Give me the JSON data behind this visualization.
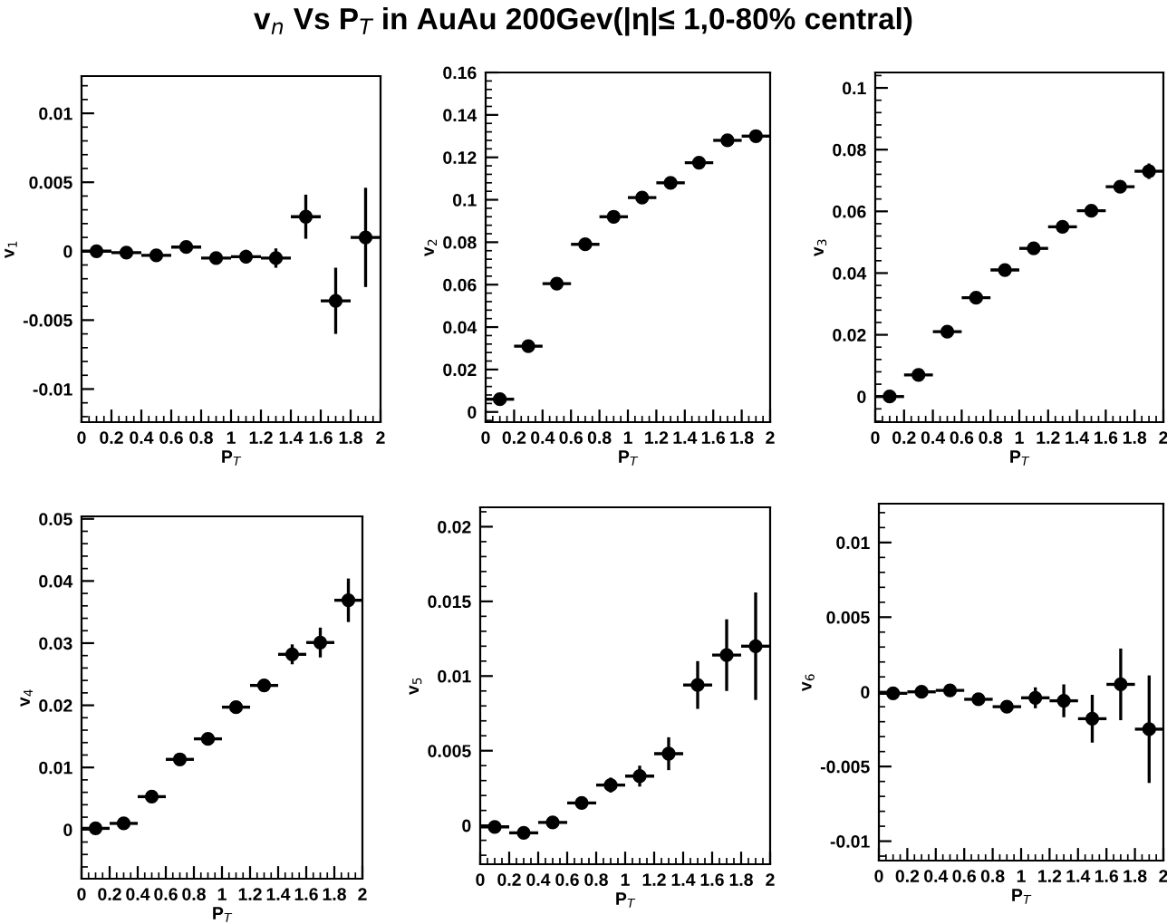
{
  "chart_data": [
    {
      "type": "scatter",
      "title": "v$_{n}$ Vs P$_{T}$ in AuAu 200Gev(|η|≤ 1,0-80% central)",
      "xlabel": "P$_{T}$",
      "ylabel": "v$_{1}$",
      "marker": "circle",
      "xlim": [
        0,
        2
      ],
      "xticks": [
        0,
        0.2,
        0.4,
        0.6,
        0.8,
        1,
        1.2,
        1.4,
        1.6,
        1.8,
        2
      ],
      "ylim": [
        -0.0124,
        0.0127
      ],
      "yticks": [
        -0.01,
        -0.005,
        0,
        0.005,
        0.01
      ],
      "x": [
        0.1,
        0.3,
        0.5,
        0.7,
        0.9,
        1.1,
        1.3,
        1.5,
        1.7,
        1.9
      ],
      "series": [
        {
          "color": "#000000",
          "values": [
            0,
            -0.0001,
            -0.0003,
            0.0003,
            -0.0005,
            -0.0004,
            -0.0005,
            0.0025,
            -0.0036,
            0.001
          ],
          "errors": [
            0.0002,
            0.0002,
            0.0002,
            0.0002,
            0.0003,
            0.0005,
            0.0007,
            0.0016,
            0.0024,
            0.0036
          ],
          "xerrors": [
            0.1,
            0.1,
            0.1,
            0.1,
            0.1,
            0.1,
            0.1,
            0.1,
            0.1,
            0.1
          ]
        }
      ]
    },
    {
      "type": "scatter",
      "xlabel": "P$_{T}$",
      "ylabel": "v$_{2}$",
      "marker": "circle",
      "xlim": [
        0,
        2
      ],
      "xticks": [
        0,
        0.2,
        0.4,
        0.6,
        0.8,
        1,
        1.2,
        1.4,
        1.6,
        1.8,
        2
      ],
      "ylim": [
        -0.0048,
        0.16
      ],
      "yticks": [
        0,
        0.02,
        0.04,
        0.06,
        0.08,
        0.1,
        0.12,
        0.14,
        0.16
      ],
      "x": [
        0.1,
        0.3,
        0.5,
        0.7,
        0.9,
        1.1,
        1.3,
        1.5,
        1.7,
        1.9
      ],
      "series": [
        {
          "color": "#000000",
          "values": [
            0.006,
            0.031,
            0.0605,
            0.079,
            0.092,
            0.101,
            0.108,
            0.1175,
            0.128,
            0.13
          ],
          "errors": [
            0.0005,
            0.0005,
            0.0005,
            0.0005,
            0.0005,
            0.0006,
            0.0007,
            0.001,
            0.0014,
            0.002
          ],
          "xerrors": [
            0.1,
            0.1,
            0.1,
            0.1,
            0.1,
            0.1,
            0.1,
            0.1,
            0.1,
            0.1
          ]
        }
      ]
    },
    {
      "type": "scatter",
      "xlabel": "P$_{T}$",
      "ylabel": "v$_{3}$",
      "marker": "circle",
      "xlim": [
        0,
        2
      ],
      "xticks": [
        0,
        0.2,
        0.4,
        0.6,
        0.8,
        1,
        1.2,
        1.4,
        1.6,
        1.8,
        2
      ],
      "ylim": [
        -0.0083,
        0.105
      ],
      "yticks": [
        0,
        0.02,
        0.04,
        0.06,
        0.08,
        0.1
      ],
      "x": [
        0.1,
        0.3,
        0.5,
        0.7,
        0.9,
        1.1,
        1.3,
        1.5,
        1.7,
        1.9
      ],
      "series": [
        {
          "color": "#000000",
          "values": [
            0,
            0.007,
            0.021,
            0.032,
            0.041,
            0.048,
            0.055,
            0.0602,
            0.068,
            0.073
          ],
          "errors": [
            0.0004,
            0.0004,
            0.0004,
            0.0004,
            0.0005,
            0.0006,
            0.0007,
            0.001,
            0.0015,
            0.0025
          ],
          "xerrors": [
            0.1,
            0.1,
            0.1,
            0.1,
            0.1,
            0.1,
            0.1,
            0.1,
            0.1,
            0.1
          ]
        }
      ]
    },
    {
      "type": "scatter",
      "xlabel": "P$_{T}$",
      "ylabel": "v$_{4}$",
      "marker": "circle",
      "xlim": [
        0,
        2
      ],
      "xticks": [
        0,
        0.2,
        0.4,
        0.6,
        0.8,
        1,
        1.2,
        1.4,
        1.6,
        1.8,
        2
      ],
      "ylim": [
        -0.0079,
        0.0504
      ],
      "yticks": [
        0,
        0.01,
        0.02,
        0.03,
        0.04,
        0.05
      ],
      "x": [
        0.1,
        0.3,
        0.5,
        0.7,
        0.9,
        1.1,
        1.3,
        1.5,
        1.7,
        1.9
      ],
      "series": [
        {
          "color": "#000000",
          "values": [
            0.0002,
            0.001,
            0.0053,
            0.0113,
            0.0146,
            0.0197,
            0.0232,
            0.0282,
            0.0301,
            0.0369
          ],
          "errors": [
            0.0002,
            0.0002,
            0.0003,
            0.0003,
            0.0004,
            0.0005,
            0.001,
            0.0016,
            0.0024,
            0.0035
          ],
          "xerrors": [
            0.1,
            0.1,
            0.1,
            0.1,
            0.1,
            0.1,
            0.1,
            0.1,
            0.1,
            0.1
          ]
        }
      ]
    },
    {
      "type": "scatter",
      "xlabel": "P$_{T}$",
      "ylabel": "v$_{5}$",
      "marker": "circle",
      "xlim": [
        0,
        2
      ],
      "xticks": [
        0,
        0.2,
        0.4,
        0.6,
        0.8,
        1,
        1.2,
        1.4,
        1.6,
        1.8,
        2
      ],
      "ylim": [
        -0.0026,
        0.0213
      ],
      "yticks": [
        0,
        0.005,
        0.01,
        0.015,
        0.02
      ],
      "x": [
        0.1,
        0.3,
        0.5,
        0.7,
        0.9,
        1.1,
        1.3,
        1.5,
        1.7,
        1.9
      ],
      "series": [
        {
          "color": "#000000",
          "values": [
            -0.0001,
            -0.0005,
            0.0002,
            0.0015,
            0.0027,
            0.0033,
            0.0048,
            0.0094,
            0.0114,
            0.012
          ],
          "errors": [
            0.0002,
            0.0002,
            0.0002,
            0.0003,
            0.0005,
            0.0007,
            0.0011,
            0.0016,
            0.0024,
            0.0036
          ],
          "xerrors": [
            0.1,
            0.1,
            0.1,
            0.1,
            0.1,
            0.1,
            0.1,
            0.1,
            0.1,
            0.1
          ]
        }
      ]
    },
    {
      "type": "scatter",
      "xlabel": "P$_{T}$",
      "ylabel": "v$_{6}$",
      "marker": "circle",
      "xlim": [
        0,
        2
      ],
      "xticks": [
        0,
        0.2,
        0.4,
        0.6,
        0.8,
        1,
        1.2,
        1.4,
        1.6,
        1.8,
        2
      ],
      "ylim": [
        -0.0113,
        0.0126
      ],
      "yticks": [
        -0.01,
        -0.005,
        0,
        0.005,
        0.01
      ],
      "x": [
        0.1,
        0.3,
        0.5,
        0.7,
        0.9,
        1.1,
        1.3,
        1.5,
        1.7,
        1.9
      ],
      "series": [
        {
          "color": "#000000",
          "values": [
            -0.0001,
            0,
            0.0001,
            -0.0005,
            -0.001,
            -0.0004,
            -0.0006,
            -0.0018,
            0.0005,
            -0.0025
          ],
          "errors": [
            0.0002,
            0.0002,
            0.0002,
            0.0002,
            0.0004,
            0.0007,
            0.0011,
            0.0016,
            0.0024,
            0.0036
          ],
          "xerrors": [
            0.1,
            0.1,
            0.1,
            0.1,
            0.1,
            0.1,
            0.1,
            0.1,
            0.1,
            0.1
          ]
        }
      ]
    }
  ]
}
